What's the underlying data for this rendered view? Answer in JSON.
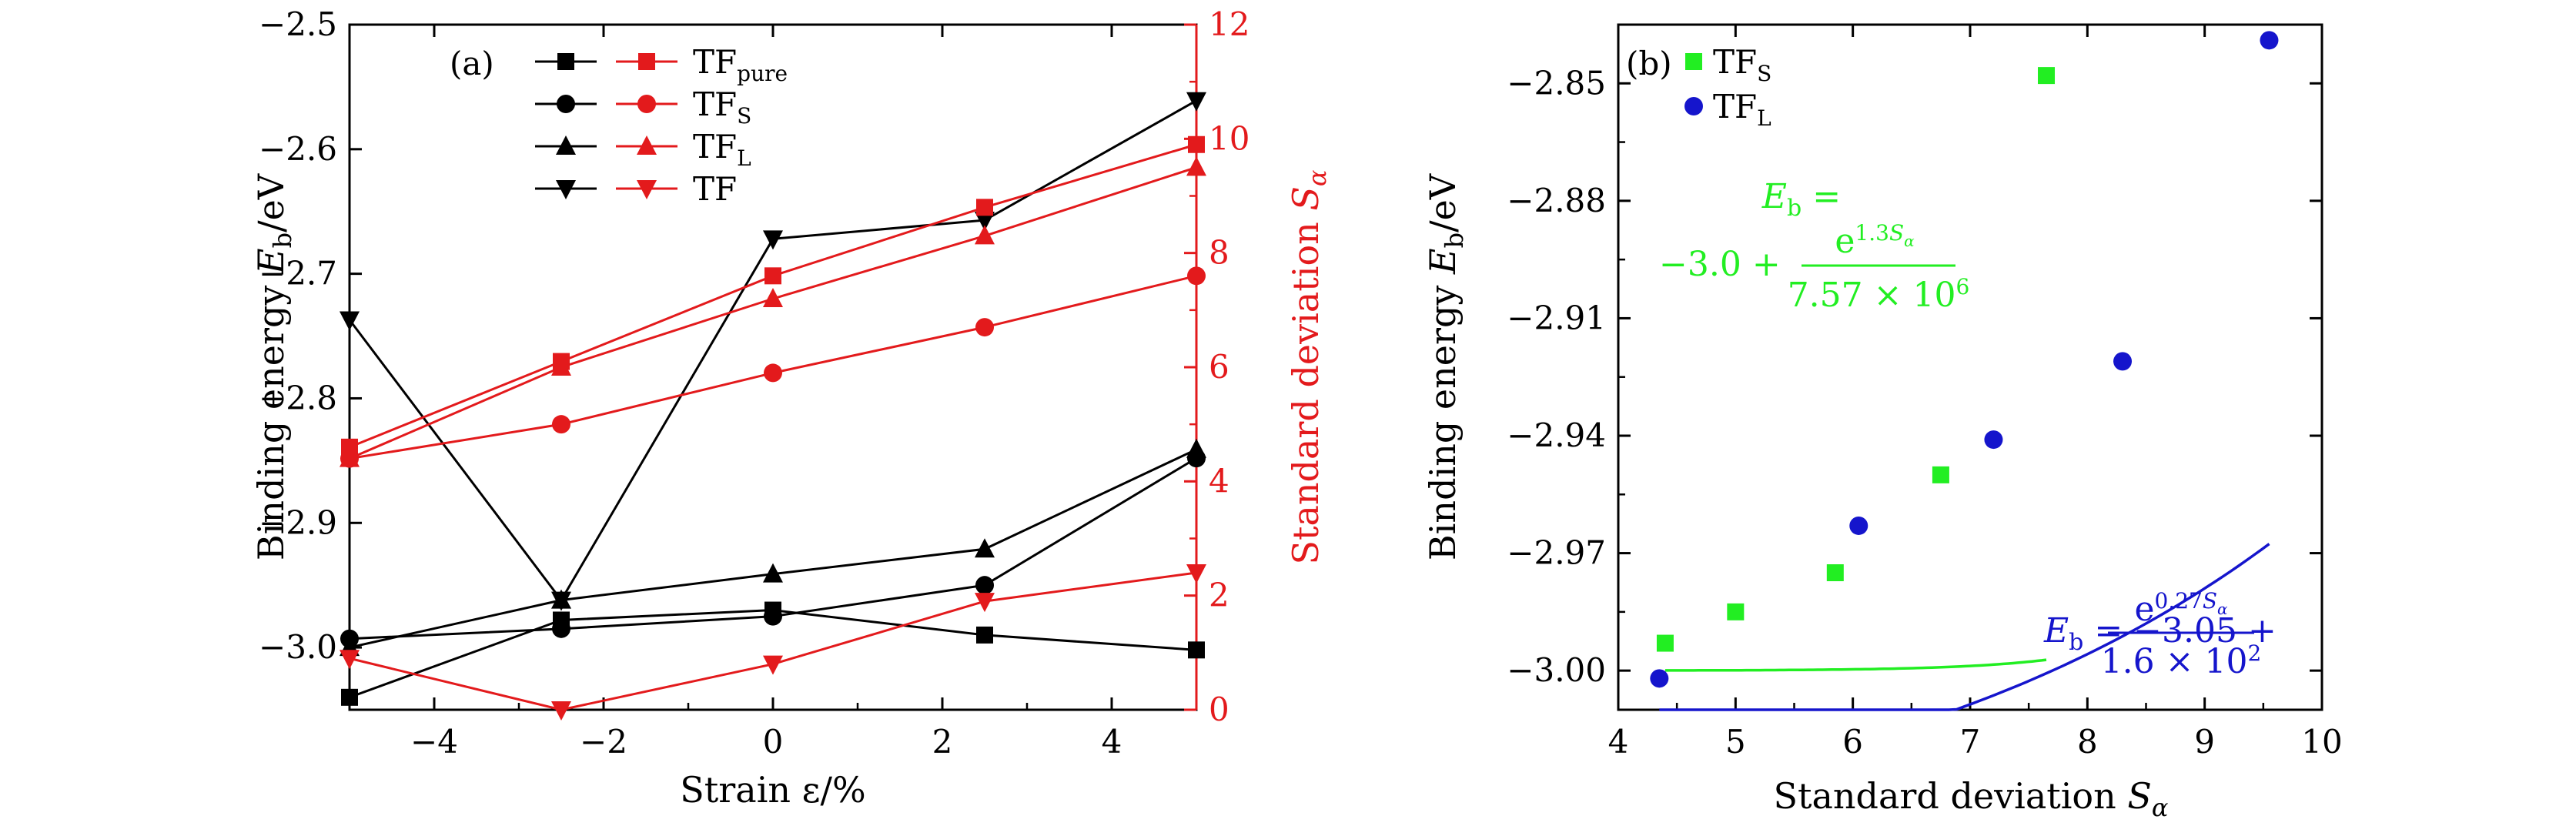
{
  "chart_data": [
    {
      "type": "line",
      "panel_label": "(a)",
      "xlabel": "Strain ε/%",
      "ylabel": "Binding energy E_b/eV",
      "ylabel_right": "Standard deviation S_α",
      "xlim": [
        -5,
        5
      ],
      "ylim": [
        -3.05,
        -2.5
      ],
      "ylim_right": [
        0,
        12
      ],
      "x_ticks": [
        -4,
        -2,
        0,
        2,
        4
      ],
      "x_tick_labels": [
        "−4",
        "−2",
        "0",
        "2",
        "4"
      ],
      "y_ticks": [
        -3.0,
        -2.9,
        -2.8,
        -2.7,
        -2.6,
        -2.5
      ],
      "y_tick_labels": [
        "−3.0",
        "−2.9",
        "−2.8",
        "−2.7",
        "−2.6",
        "−2.5"
      ],
      "y_right_ticks": [
        0,
        2,
        4,
        6,
        8,
        10,
        12
      ],
      "y_right_tick_labels": [
        "0",
        "2",
        "4",
        "6",
        "8",
        "10",
        "12"
      ],
      "x": [
        -5,
        -2.5,
        0,
        2.5,
        5
      ],
      "legend_position": "top-left",
      "legend": [
        {
          "label": "TF",
          "subscript": "pure",
          "marker": "square"
        },
        {
          "label": "TF",
          "subscript": "S",
          "marker": "circle"
        },
        {
          "label": "TF",
          "subscript": "L",
          "marker": "triangle-up"
        },
        {
          "label": "TF",
          "subscript": "",
          "marker": "triangle-down"
        }
      ],
      "series": [
        {
          "name": "TFpure binding energy",
          "axis": "left",
          "color": "#000000",
          "marker": "square",
          "values": [
            -3.04,
            -2.978,
            -2.97,
            -2.99,
            -3.002
          ]
        },
        {
          "name": "TFS binding energy",
          "axis": "left",
          "color": "#000000",
          "marker": "circle",
          "values": [
            -2.993,
            -2.985,
            -2.975,
            -2.95,
            -2.848
          ]
        },
        {
          "name": "TFL binding energy",
          "axis": "left",
          "color": "#000000",
          "marker": "triangle-up",
          "values": [
            -3.0,
            -2.962,
            -2.941,
            -2.921,
            -2.841
          ]
        },
        {
          "name": "TF binding energy",
          "axis": "left",
          "color": "#000000",
          "marker": "triangle-down",
          "values": [
            -2.737,
            -2.962,
            -2.672,
            -2.657,
            -2.561
          ]
        },
        {
          "name": "TFpure standard deviation",
          "axis": "right",
          "color": "#e31a1c",
          "marker": "square",
          "values": [
            4.6,
            6.1,
            7.6,
            8.8,
            9.9
          ]
        },
        {
          "name": "TFS standard deviation",
          "axis": "right",
          "color": "#e31a1c",
          "marker": "circle",
          "values": [
            4.4,
            5.0,
            5.9,
            6.7,
            7.6
          ]
        },
        {
          "name": "TFL standard deviation",
          "axis": "right",
          "color": "#e31a1c",
          "marker": "triangle-up",
          "values": [
            4.4,
            6.0,
            7.2,
            8.3,
            9.5
          ]
        },
        {
          "name": "TF standard deviation",
          "axis": "right",
          "color": "#e31a1c",
          "marker": "triangle-down",
          "values": [
            0.9,
            0.0,
            0.8,
            1.9,
            2.4
          ]
        }
      ]
    },
    {
      "type": "scatter",
      "panel_label": "(b)",
      "xlabel": "Standard deviation S_α",
      "ylabel": "Binding energy E_b/eV",
      "xlim": [
        4,
        10
      ],
      "ylim": [
        -3.01,
        -2.835
      ],
      "x_ticks": [
        4,
        5,
        6,
        7,
        8,
        9,
        10
      ],
      "x_tick_labels": [
        "4",
        "5",
        "6",
        "7",
        "8",
        "9",
        "10"
      ],
      "y_ticks": [
        -3.0,
        -2.97,
        -2.94,
        -2.91,
        -2.88,
        -2.85
      ],
      "y_tick_labels": [
        "−3.00",
        "−2.97",
        "−2.94",
        "−2.91",
        "−2.88",
        "−2.85"
      ],
      "legend_position": "top-left",
      "legend": [
        {
          "label": "TF",
          "subscript": "S",
          "marker": "square",
          "color": "#22ee22"
        },
        {
          "label": "TF",
          "subscript": "L",
          "marker": "circle",
          "color": "#1515cc"
        }
      ],
      "series": [
        {
          "name": "TFS",
          "color": "#22ee22",
          "marker": "square",
          "x": [
            4.4,
            5.0,
            5.85,
            6.75,
            7.65
          ],
          "y": [
            -2.993,
            -2.985,
            -2.975,
            -2.95,
            -2.848
          ]
        },
        {
          "name": "TFL",
          "color": "#1515cc",
          "marker": "circle",
          "x": [
            4.35,
            6.05,
            7.2,
            8.3,
            9.55
          ],
          "y": [
            -3.002,
            -2.963,
            -2.941,
            -2.921,
            -2.839
          ]
        }
      ],
      "fits": [
        {
          "series": "TFS",
          "color": "#22ee22",
          "a": -3.0,
          "b": 1.3,
          "c": 7570000.0,
          "x_range": [
            4.4,
            7.65
          ],
          "label_line1": "E_b =",
          "label_line2_prefix": "−3.0 +",
          "numerator": "e^{1.3S_α}",
          "denominator": "7.57 × 10^6"
        },
        {
          "series": "TFL",
          "color": "#1515cc",
          "a": -3.05,
          "b": 0.27,
          "c": 160.0,
          "x_range": [
            4.35,
            9.55
          ],
          "label_prefix": "E_b = −3.05 +",
          "numerator": "e^{0.27S_α}",
          "denominator": "1.6 × 10^2"
        }
      ]
    }
  ],
  "text": {
    "a_panel": "(a)",
    "a_xlabel": "Strain ε/%",
    "a_ylabel_main": "Binding energy ",
    "a_ylabel_E": "E",
    "a_ylabel_sub": "b",
    "a_ylabel_unit": "/eV",
    "a_yright_main": "Standard deviation ",
    "a_yright_S": "S",
    "a_yright_sub": "α",
    "b_panel": "(b)",
    "b_xlabel_main": "Standard deviation ",
    "b_xlabel_S": "S",
    "b_xlabel_sub": "α",
    "b_ylabel_main": "Binding energy ",
    "b_ylabel_E": "E",
    "b_ylabel_sub": "b",
    "b_ylabel_unit": "/eV",
    "fit1_E": "E",
    "fit1_b": "b",
    "fit1_eq": " =",
    "fit1_const": "−3.0 +",
    "fit1_num_e": "e",
    "fit1_num_exp": "1.3",
    "fit1_num_S": "S",
    "fit1_num_alpha": "α",
    "fit1_den": "7.57 × 10",
    "fit1_den_exp": "6",
    "fit2_E": "E",
    "fit2_b": "b",
    "fit2_const": " = −3.05 +",
    "fit2_num_e": "e",
    "fit2_num_exp": "0.27",
    "fit2_num_S": "S",
    "fit2_num_alpha": "α",
    "fit2_den": "1.6 × 10",
    "fit2_den_exp": "2"
  }
}
